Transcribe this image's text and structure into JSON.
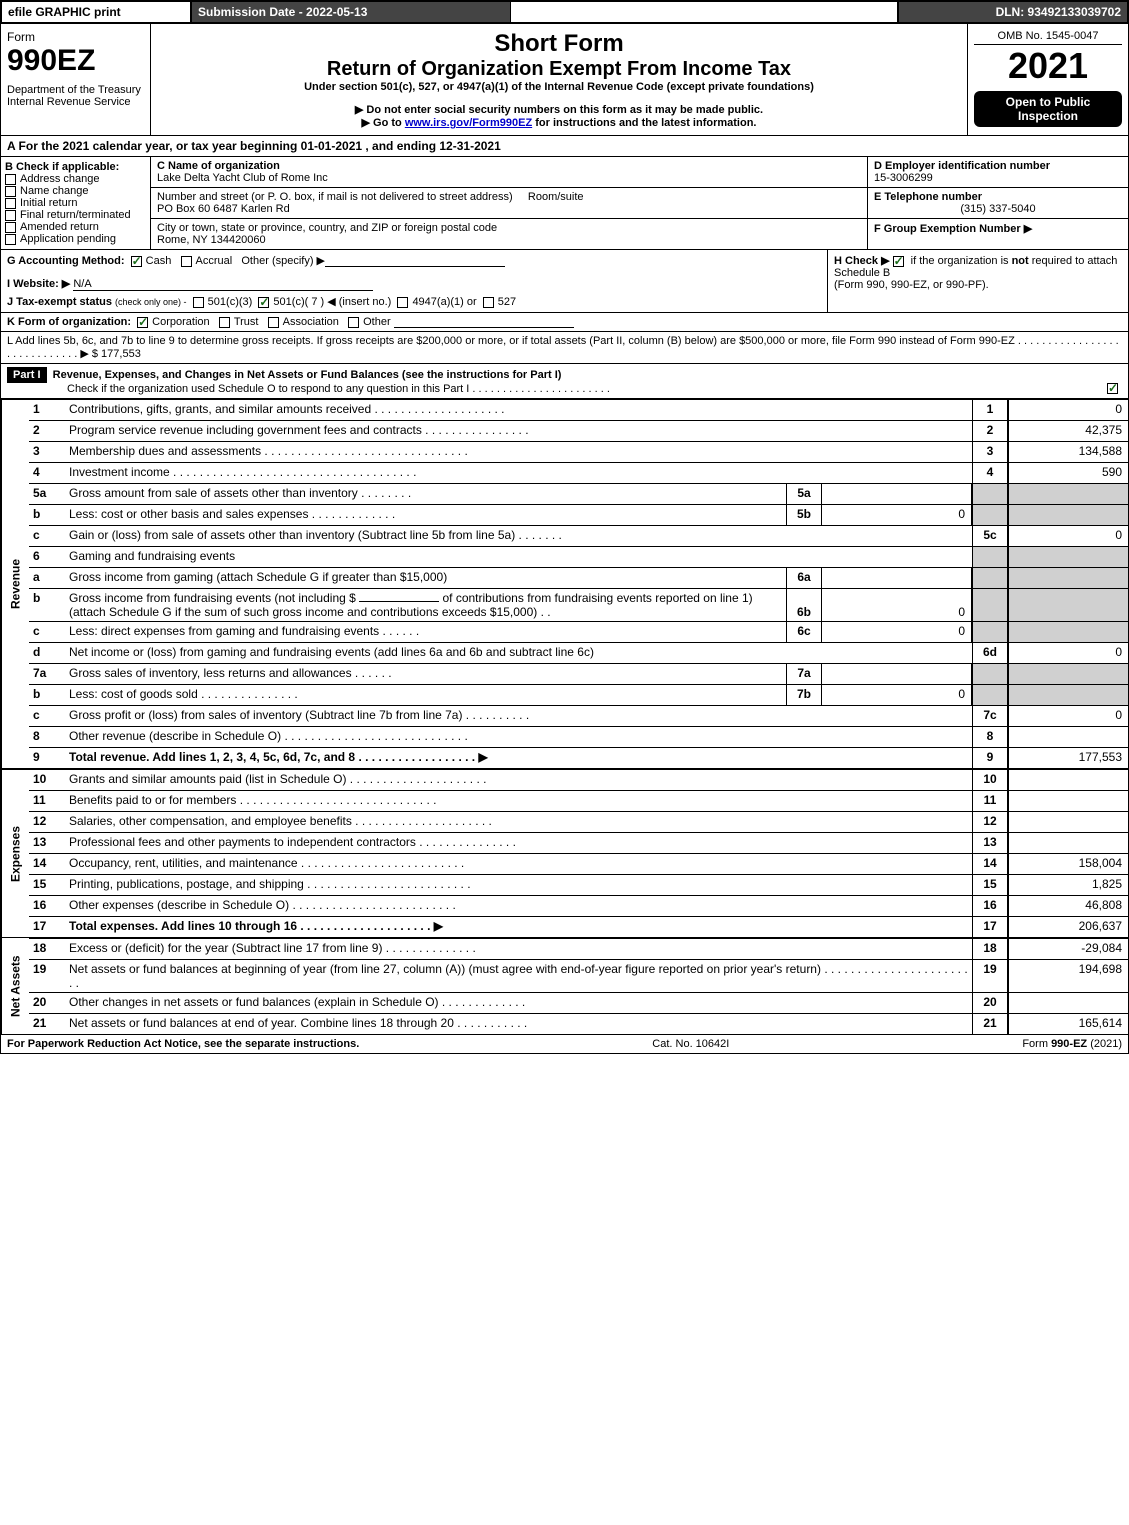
{
  "topbar": {
    "efile": "efile GRAPHIC print",
    "submission": "Submission Date - 2022-05-13",
    "dln": "DLN: 93492133039702",
    "colors": {
      "dark_bg": "#444444",
      "dark_fg": "#ffffff"
    }
  },
  "header": {
    "form_label": "Form",
    "form_number": "990EZ",
    "dept1": "Department of the Treasury",
    "dept2": "Internal Revenue Service",
    "short_form": "Short Form",
    "title2": "Return of Organization Exempt From Income Tax",
    "under": "Under section 501(c), 527, or 4947(a)(1) of the Internal Revenue Code (except private foundations)",
    "note1": "▶ Do not enter social security numbers on this form as it may be made public.",
    "note2_pre": "▶ Go to ",
    "note2_link": "www.irs.gov/Form990EZ",
    "note2_post": " for instructions and the latest information.",
    "omb": "OMB No. 1545-0047",
    "year": "2021",
    "pill1": "Open to Public Inspection"
  },
  "section_a": "A  For the 2021 calendar year, or tax year beginning 01-01-2021 , and ending 12-31-2021",
  "block_b": {
    "heading": "B  Check if applicable:",
    "items": [
      "Address change",
      "Name change",
      "Initial return",
      "Final return/terminated",
      "Amended return",
      "Application pending"
    ]
  },
  "block_c": {
    "c_label": "C Name of organization",
    "c_name": "Lake Delta Yacht Club of Rome Inc",
    "street_label": "Number and street (or P. O. box, if mail is not delivered to street address)",
    "room_label": "Room/suite",
    "street": "PO Box 60 6487 Karlen Rd",
    "city_label": "City or town, state or province, country, and ZIP or foreign postal code",
    "city": "Rome, NY  134420060"
  },
  "block_d": {
    "d_label": "D Employer identification number",
    "ein": "15-3006299",
    "e_label": "E Telephone number",
    "phone": "(315) 337-5040",
    "f_label": "F Group Exemption Number  ▶"
  },
  "g": {
    "label": "G Accounting Method:",
    "cash": "Cash",
    "accrual": "Accrual",
    "other": "Other (specify) ▶"
  },
  "h": {
    "label": "H  Check ▶",
    "text1": "if the organization is ",
    "not": "not",
    "text2": " required to attach Schedule B",
    "text3": "(Form 990, 990-EZ, or 990-PF)."
  },
  "i": {
    "label": "I Website: ▶",
    "value": "N/A"
  },
  "j": {
    "label": "J Tax-exempt status",
    "sub": "(check only one) -",
    "o1": "501(c)(3)",
    "o2": "501(c)( 7 ) ◀ (insert no.)",
    "o3": "4947(a)(1) or",
    "o4": "527"
  },
  "k": {
    "label": "K Form of organization:",
    "o1": "Corporation",
    "o2": "Trust",
    "o3": "Association",
    "o4": "Other"
  },
  "l": {
    "text": "L Add lines 5b, 6c, and 7b to line 9 to determine gross receipts. If gross receipts are $200,000 or more, or if total assets (Part II, column (B) below) are $500,000 or more, file Form 990 instead of Form 990-EZ  .  .  .  .  .  .  .  .  .  .  .  .  .  .  .  .  .  .  .  .  .  .  .  .  .  .  .  .  .  ▶ $",
    "value": "177,553"
  },
  "part1": {
    "label": "Part I",
    "title": "Revenue, Expenses, and Changes in Net Assets or Fund Balances (see the instructions for Part I)",
    "check_line": "Check if the organization used Schedule O to respond to any question in this Part I  .  .  .  .  .  .  .  .  .  .  .  .  .  .  .  .  .  .  .  .  .  .  ."
  },
  "sidebars": {
    "revenue": "Revenue",
    "expenses": "Expenses",
    "netassets": "Net Assets"
  },
  "lines": {
    "l1": {
      "n": "1",
      "d": "Contributions, gifts, grants, and similar amounts received  .  .  .  .  .  .  .  .  .  .  .  .  .  .  .  .  .  .  .  .",
      "rn": "1",
      "v": "0"
    },
    "l2": {
      "n": "2",
      "d": "Program service revenue including government fees and contracts  .  .  .  .  .  .  .  .  .  .  .  .  .  .  .  .",
      "rn": "2",
      "v": "42,375"
    },
    "l3": {
      "n": "3",
      "d": "Membership dues and assessments  .  .  .  .  .  .  .  .  .  .  .  .  .  .  .  .  .  .  .  .  .  .  .  .  .  .  .  .  .  .  .",
      "rn": "3",
      "v": "134,588"
    },
    "l4": {
      "n": "4",
      "d": "Investment income  .  .  .  .  .  .  .  .  .  .  .  .  .  .  .  .  .  .  .  .  .  .  .  .  .  .  .  .  .  .  .  .  .  .  .  .  .",
      "rn": "4",
      "v": "590"
    },
    "l5a": {
      "n": "5a",
      "d": "Gross amount from sale of assets other than inventory  .  .  .  .  .  .  .  .",
      "sn": "5a",
      "sv": ""
    },
    "l5b": {
      "n": "b",
      "d": "Less: cost or other basis and sales expenses  .  .  .  .  .  .  .  .  .  .  .  .  .",
      "sn": "5b",
      "sv": "0"
    },
    "l5c": {
      "n": "c",
      "d": "Gain or (loss) from sale of assets other than inventory (Subtract line 5b from line 5a)  .  .  .  .  .  .  .",
      "rn": "5c",
      "v": "0"
    },
    "l6": {
      "n": "6",
      "d": "Gaming and fundraising events"
    },
    "l6a": {
      "n": "a",
      "d": "Gross income from gaming (attach Schedule G if greater than $15,000)",
      "sn": "6a",
      "sv": ""
    },
    "l6b": {
      "n": "b",
      "d1": "Gross income from fundraising events (not including $",
      "d2": "of contributions from fundraising events reported on line 1) (attach Schedule G if the sum of such gross income and contributions exceeds $15,000)    .   .",
      "sn": "6b",
      "sv": "0"
    },
    "l6c": {
      "n": "c",
      "d": "Less: direct expenses from gaming and fundraising events  .  .  .  .  .  .",
      "sn": "6c",
      "sv": "0"
    },
    "l6d": {
      "n": "d",
      "d": "Net income or (loss) from gaming and fundraising events (add lines 6a and 6b and subtract line 6c)",
      "rn": "6d",
      "v": "0"
    },
    "l7a": {
      "n": "7a",
      "d": "Gross sales of inventory, less returns and allowances  .  .  .  .  .  .",
      "sn": "7a",
      "sv": ""
    },
    "l7b": {
      "n": "b",
      "d": "Less: cost of goods sold   .  .  .  .  .  .  .  .  .  .  .  .  .  .  .",
      "sn": "7b",
      "sv": "0"
    },
    "l7c": {
      "n": "c",
      "d": "Gross profit or (loss) from sales of inventory (Subtract line 7b from line 7a)  .  .  .  .  .  .  .  .  .  .",
      "rn": "7c",
      "v": "0"
    },
    "l8": {
      "n": "8",
      "d": "Other revenue (describe in Schedule O)  .  .  .  .  .  .  .  .  .  .  .  .  .  .  .  .  .  .  .  .  .  .  .  .  .  .  .  .",
      "rn": "8",
      "v": ""
    },
    "l9": {
      "n": "9",
      "d": "Total revenue. Add lines 1, 2, 3, 4, 5c, 6d, 7c, and 8   .  .  .  .  .  .  .  .  .  .  .  .  .  .  .  .  .  .  ▶",
      "rn": "9",
      "v": "177,553",
      "bold": true
    },
    "l10": {
      "n": "10",
      "d": "Grants and similar amounts paid (list in Schedule O)  .  .  .  .  .  .  .  .  .  .  .  .  .  .  .  .  .  .  .  .  .",
      "rn": "10",
      "v": ""
    },
    "l11": {
      "n": "11",
      "d": "Benefits paid to or for members   .  .  .  .  .  .  .  .  .  .  .  .  .  .  .  .  .  .  .  .  .  .  .  .  .  .  .  .  .  .",
      "rn": "11",
      "v": ""
    },
    "l12": {
      "n": "12",
      "d": "Salaries, other compensation, and employee benefits  .  .  .  .  .  .  .  .  .  .  .  .  .  .  .  .  .  .  .  .  .",
      "rn": "12",
      "v": ""
    },
    "l13": {
      "n": "13",
      "d": "Professional fees and other payments to independent contractors  .  .  .  .  .  .  .  .  .  .  .  .  .  .  .",
      "rn": "13",
      "v": ""
    },
    "l14": {
      "n": "14",
      "d": "Occupancy, rent, utilities, and maintenance  .  .  .  .  .  .  .  .  .  .  .  .  .  .  .  .  .  .  .  .  .  .  .  .  .",
      "rn": "14",
      "v": "158,004"
    },
    "l15": {
      "n": "15",
      "d": "Printing, publications, postage, and shipping .  .  .  .  .  .  .  .  .  .  .  .  .  .  .  .  .  .  .  .  .  .  .  .  .",
      "rn": "15",
      "v": "1,825"
    },
    "l16": {
      "n": "16",
      "d": "Other expenses (describe in Schedule O)   .  .  .  .  .  .  .  .  .  .  .  .  .  .  .  .  .  .  .  .  .  .  .  .  .",
      "rn": "16",
      "v": "46,808"
    },
    "l17": {
      "n": "17",
      "d": "Total expenses. Add lines 10 through 16   .  .  .  .  .  .  .  .  .  .  .  .  .  .  .  .  .  .  .  .  ▶",
      "rn": "17",
      "v": "206,637",
      "bold": true
    },
    "l18": {
      "n": "18",
      "d": "Excess or (deficit) for the year (Subtract line 17 from line 9)   .  .  .  .  .  .  .  .  .  .  .  .  .  .",
      "rn": "18",
      "v": "-29,084"
    },
    "l19": {
      "n": "19",
      "d": "Net assets or fund balances at beginning of year (from line 27, column (A)) (must agree with end-of-year figure reported on prior year's return)  .  .  .  .  .  .  .  .  .  .  .  .  .  .  .  .  .  .  .  .  .  .  .  .",
      "rn": "19",
      "v": "194,698"
    },
    "l20": {
      "n": "20",
      "d": "Other changes in net assets or fund balances (explain in Schedule O)  .  .  .  .  .  .  .  .  .  .  .  .  .",
      "rn": "20",
      "v": ""
    },
    "l21": {
      "n": "21",
      "d": "Net assets or fund balances at end of year. Combine lines 18 through 20  .  .  .  .  .  .  .  .  .  .  .",
      "rn": "21",
      "v": "165,614"
    }
  },
  "footer": {
    "left": "For Paperwork Reduction Act Notice, see the separate instructions.",
    "center": "Cat. No. 10642I",
    "right_pre": "Form ",
    "right_bold": "990-EZ",
    "right_post": " (2021)"
  },
  "style": {
    "shade": "#d0d0d0",
    "link_color": "#0000cc",
    "check_color": "#1a6b1a"
  }
}
